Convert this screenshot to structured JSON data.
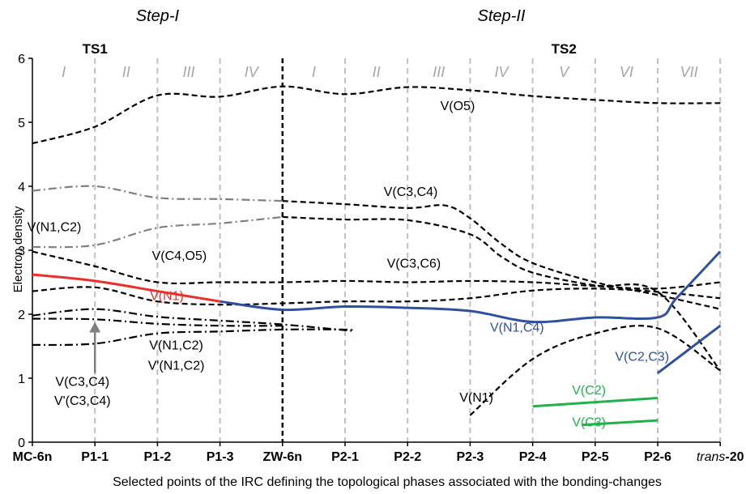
{
  "chart_data": {
    "type": "line",
    "title": "",
    "xlabel": "Selected points of the IRC defining the topological phases associated with the bonding-changes",
    "ylabel": "Electron density",
    "ylim": [
      0,
      6
    ],
    "yticks": [
      "0",
      "1",
      "2",
      "3",
      "4",
      "5",
      "6"
    ],
    "categories": [
      "MC-6n",
      "P1-1",
      "P1-2",
      "P1-3",
      "ZW-6n",
      "P2-1",
      "P2-2",
      "P2-3",
      "P2-4",
      "P2-5",
      "P2-6",
      "trans-20"
    ],
    "trans_prefix": "trans",
    "trans_suffix": "-20",
    "grid": "vertical dashed at each category",
    "step_labels": [
      {
        "text": "Step-I",
        "x": 2
      },
      {
        "text": "Step-II",
        "x": 7.5
      }
    ],
    "ts_labels": [
      {
        "text": "TS1",
        "x": 1
      },
      {
        "text": "TS2",
        "x": 8.5
      }
    ],
    "phase_labels": [
      {
        "text": "I",
        "x": 0.5
      },
      {
        "text": "II",
        "x": 1.5
      },
      {
        "text": "III",
        "x": 2.5
      },
      {
        "text": "IV",
        "x": 3.5
      },
      {
        "text": "I",
        "x": 4.5
      },
      {
        "text": "II",
        "x": 5.5
      },
      {
        "text": "III",
        "x": 6.5
      },
      {
        "text": "IV",
        "x": 7.5
      },
      {
        "text": "V",
        "x": 8.5
      },
      {
        "text": "VI",
        "x": 9.5
      },
      {
        "text": "VII",
        "x": 10.5
      }
    ],
    "colors": {
      "red": "#e8312b",
      "blue": "#2f4f9f",
      "green": "#22b14c",
      "gray": "#7f7f7f",
      "black": "#000000",
      "grid": "#c0c0c0"
    },
    "series": [
      {
        "name": "V(O5)",
        "color": "black",
        "dash": "dashed",
        "x": [
          0,
          1,
          2,
          3,
          4,
          5,
          6,
          7,
          8,
          9,
          10,
          11
        ],
        "y": [
          4.67,
          4.93,
          5.42,
          5.4,
          5.56,
          5.44,
          5.55,
          5.5,
          5.41,
          5.35,
          5.3,
          5.3
        ]
      },
      {
        "name": "V(C3,C4)",
        "color": "black",
        "dash": "dashed",
        "x": [
          4,
          5,
          6,
          6.6,
          7,
          7.5,
          8,
          9,
          10,
          11
        ],
        "y": [
          3.77,
          3.72,
          3.66,
          3.7,
          3.5,
          3.1,
          2.8,
          2.5,
          2.3,
          2.08
        ]
      },
      {
        "color": "black",
        "dash": "dashed",
        "x": [
          4,
          5,
          6,
          7,
          7.5,
          8,
          9,
          10,
          11
        ],
        "y": [
          3.52,
          3.48,
          3.47,
          3.25,
          2.9,
          2.65,
          2.45,
          2.35,
          1.12
        ]
      },
      {
        "name": "V(N1,C2)",
        "color": "gray",
        "dash": "dashdot",
        "x": [
          0,
          1,
          2,
          3,
          4
        ],
        "y": [
          3.93,
          4.0,
          3.82,
          3.8,
          3.77
        ]
      },
      {
        "color": "gray",
        "dash": "dashdot",
        "x": [
          0,
          1,
          2,
          3,
          4
        ],
        "y": [
          3.05,
          3.08,
          3.35,
          3.42,
          3.52
        ]
      },
      {
        "name": "V(C4,O5)",
        "color": "black",
        "dash": "dashed",
        "x": [
          0,
          1,
          2,
          3,
          4,
          5,
          6,
          7,
          8,
          9,
          10,
          11
        ],
        "y": [
          2.98,
          2.75,
          2.5,
          2.5,
          2.5,
          2.52,
          2.5,
          2.52,
          2.5,
          2.44,
          2.4,
          2.5
        ]
      },
      {
        "name": "V(C3,C6)",
        "color": "black",
        "dash": "dashed",
        "x": [
          0,
          1,
          2,
          3,
          4,
          5,
          6,
          7,
          8,
          9,
          10,
          11
        ],
        "y": [
          2.36,
          2.42,
          2.2,
          2.15,
          2.17,
          2.2,
          2.2,
          2.25,
          2.37,
          2.4,
          2.35,
          2.25
        ]
      },
      {
        "name": "V(N1)",
        "color": "red",
        "dash": "solid",
        "x": [
          0,
          1,
          2,
          3
        ],
        "y": [
          2.62,
          2.52,
          2.36,
          2.2
        ]
      },
      {
        "name": "V(N1,C4)",
        "color": "blue",
        "dash": "solid",
        "x": [
          3,
          4,
          5,
          6,
          7,
          8,
          9,
          10,
          10.3,
          11
        ],
        "y": [
          2.2,
          2.07,
          2.12,
          2.1,
          2.05,
          1.88,
          1.95,
          1.95,
          2.25,
          2.98
        ]
      },
      {
        "name": "V(N1,C2)",
        "color": "black",
        "dash": "dashdot",
        "x": [
          0,
          1,
          2,
          3,
          4,
          5,
          5.1
        ],
        "y": [
          1.98,
          2.08,
          1.96,
          1.9,
          1.84,
          1.75,
          1.74
        ]
      },
      {
        "name": "V'(N1,C2)",
        "color": "black",
        "dash": "dashdot",
        "x": [
          0,
          1,
          2,
          3,
          4
        ],
        "y": [
          1.93,
          1.92,
          1.85,
          1.82,
          1.82
        ]
      },
      {
        "name": "V(C3,C4)",
        "color": "black",
        "dash": "dashdot",
        "x": [
          0,
          1,
          2,
          3,
          4,
          5,
          5.1
        ],
        "y": [
          1.52,
          1.54,
          1.7,
          1.73,
          1.76,
          1.76,
          1.74
        ]
      },
      {
        "name": "V(N1)",
        "color": "black",
        "dash": "dashed",
        "x": [
          7,
          8,
          9,
          10,
          11
        ],
        "y": [
          0.42,
          1.3,
          1.7,
          1.78,
          1.12
        ]
      },
      {
        "name": "V(C2,C3)",
        "color": "blue",
        "dash": "solid",
        "x": [
          10,
          11
        ],
        "y": [
          1.08,
          1.82
        ]
      },
      {
        "name": "V(C2)",
        "color": "green",
        "dash": "solid",
        "x": [
          8,
          10
        ],
        "y": [
          0.56,
          0.69
        ]
      },
      {
        "name": "V(C3)",
        "color": "green",
        "dash": "solid",
        "x": [
          8.8,
          10
        ],
        "y": [
          0.27,
          0.34
        ]
      }
    ],
    "annotations": [
      {
        "text": "V(O5)",
        "color": "black",
        "x": 6.8,
        "y": 5.19
      },
      {
        "text": "V(C3,C4)",
        "color": "black",
        "x": 6.05,
        "y": 3.85
      },
      {
        "text": "V(N1,C2)",
        "color": "black",
        "x": 0.35,
        "y": 3.3
      },
      {
        "text": "V(C4,O5)",
        "color": "black",
        "x": 2.35,
        "y": 2.85
      },
      {
        "text": "V(C3,C6)",
        "color": "black",
        "x": 6.1,
        "y": 2.73
      },
      {
        "text": "V(N1)",
        "color": "red",
        "x": 2.15,
        "y": 2.22
      },
      {
        "text": "V(N1,C4)",
        "color": "blue",
        "x": 7.75,
        "y": 1.73
      },
      {
        "text": "V(N1,C2)",
        "color": "black",
        "x": 2.3,
        "y": 1.45
      },
      {
        "text": "V'(N1,C2)",
        "color": "black",
        "x": 2.3,
        "y": 1.13
      },
      {
        "text": "V(C3,C4)",
        "color": "black",
        "x": 0.8,
        "y": 0.88
      },
      {
        "text": "V'(C3,C4)",
        "color": "black",
        "x": 0.8,
        "y": 0.58
      },
      {
        "text": "V(N1)",
        "color": "black",
        "x": 7.1,
        "y": 0.63
      },
      {
        "text": "V(C2,C3)",
        "color": "blue",
        "x": 9.75,
        "y": 1.27
      },
      {
        "text": "V(C2)",
        "color": "green",
        "x": 8.9,
        "y": 0.75
      },
      {
        "text": "V(C3)",
        "color": "green",
        "x": 8.9,
        "y": 0.25
      }
    ],
    "arrow": {
      "color": "gray",
      "x": 1,
      "from_y": 1.08,
      "to_y": 1.88
    }
  }
}
